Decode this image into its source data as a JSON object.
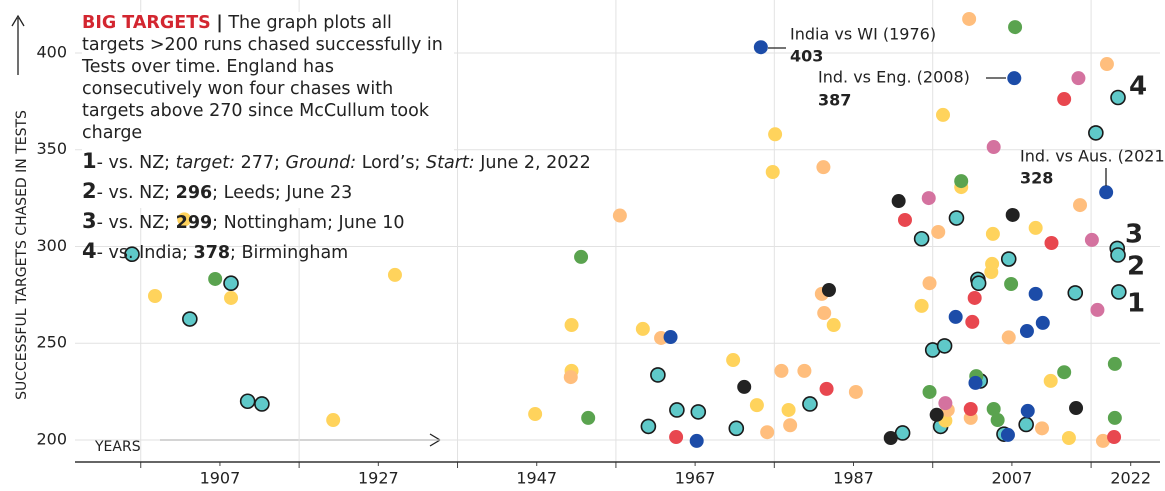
{
  "chart_data": {
    "type": "scatter",
    "headline": "BIG TARGETS",
    "separator": "|",
    "description": "The graph plots all targets >200 runs chased successfully in Tests over time. England has consecutively won four chases with targets above 270 since McCullum took charge",
    "notes": [
      [
        "1",
        "- vs. NZ; ",
        "target:",
        " 277; ",
        "Ground:",
        " Lord’s; ",
        "Start:",
        " June 2, 2022"
      ],
      [
        "2",
        "- vs. NZ; ",
        "296",
        "; Leeds; June 23"
      ],
      [
        "3",
        "- vs. NZ; ",
        "299",
        "; Nottingham; June 10"
      ],
      [
        "4",
        "- vs. India; ",
        "378",
        "; Birmingham"
      ]
    ],
    "ylabel": "SUCCESSFUL TARGETS CHASED IN TESTS",
    "xlabel": "YEARS",
    "xlim": [
      1888.7,
      2025.7
    ],
    "ylim": [
      188.6,
      427.4
    ],
    "xticks": [
      1907,
      1927,
      1947,
      1967,
      1987,
      2007,
      2022
    ],
    "xgrid": [
      1897,
      1917,
      1937,
      1957,
      1977,
      1997,
      2017
    ],
    "yticks": [
      200,
      250,
      300,
      350,
      400
    ],
    "grid": true,
    "series": [
      {
        "color": "#5fc9c9",
        "outline": true,
        "x": [
          1895.9,
          1903.2,
          1908.4,
          1910.5,
          1912.3,
          1962.3,
          1961.1,
          1964.7,
          1967.4,
          1972.2,
          1981.5,
          1993.2,
          1995.6,
          1997,
          1998.5,
          1998,
          2000,
          2002.7,
          2002.8,
          2003,
          2006.6,
          2006,
          2008.8,
          2015,
          2017.6,
          2020.4,
          2020.3,
          2020.4,
          2020.5
        ],
        "values": [
          296,
          262.5,
          281,
          220,
          218.6,
          233.6,
          207,
          215.5,
          214.5,
          206,
          218.6,
          203.6,
          304,
          246.5,
          248.6,
          207,
          314.7,
          283,
          281,
          230.5,
          293.5,
          203,
          208,
          276,
          358.7,
          377,
          299,
          295.6,
          276.5
        ]
      },
      {
        "color": "#ffd35c",
        "outline": false,
        "x": [
          1902.5,
          1898.8,
          1908.4,
          1929.1,
          1921.3,
          1946.8,
          1951.4,
          1951.4,
          1960.4,
          1971.8,
          1974.8,
          1977.1,
          1976.8,
          1978.8,
          1984.5,
          1998.3,
          1995.6,
          2000.6,
          2004.5,
          2004.4,
          2004.6,
          2010,
          2011.9,
          2014.2,
          1998.6
        ],
        "values": [
          314,
          274.4,
          273.4,
          285.3,
          210.3,
          213.4,
          259.4,
          235.7,
          257.4,
          241.3,
          218,
          358,
          338.5,
          215.5,
          259.4,
          368,
          269.3,
          330.7,
          291,
          286.8,
          306.5,
          309.6,
          230.5,
          201,
          210
        ]
      },
      {
        "color": "#ffbe7d",
        "outline": false,
        "x": [
          1957.5,
          1951.3,
          1962.7,
          1976.1,
          1977.9,
          1979,
          1980.8,
          1983.2,
          1983,
          1983.3,
          1987.3,
          1996.6,
          1997.7,
          1998.9,
          2001.6,
          2001.8,
          2006.6,
          2010.8,
          2015.6,
          2019,
          2018.5
        ],
        "values": [
          316,
          232.5,
          252.7,
          204,
          235.7,
          207.6,
          235.7,
          341,
          275.5,
          265.6,
          224.8,
          281,
          307.5,
          215.5,
          417.6,
          211.4,
          253,
          206,
          321.4,
          394.3,
          199.5
        ]
      },
      {
        "color": "#5aa34f",
        "outline": false,
        "x": [
          1906.4,
          1952.6,
          1953.5,
          2000.6,
          1996.6,
          2002.5,
          2004.7,
          2005.2,
          2006.9,
          2007.4,
          2013.6,
          2020,
          2020
        ],
        "values": [
          283.2,
          294.6,
          211.4,
          333.8,
          224.8,
          233,
          216,
          210.3,
          280.6,
          413.4,
          235,
          239.3,
          211.4
        ]
      },
      {
        "color": "#e8474f",
        "outline": false,
        "x": [
          1964.6,
          1983.6,
          1993.5,
          2002.3,
          2002,
          2001.8,
          2012,
          2013.6,
          2019.9
        ],
        "values": [
          201.5,
          226.4,
          313.7,
          273.4,
          261,
          216,
          301.8,
          376.2,
          201.5
        ]
      },
      {
        "color": "#1c4ca8",
        "outline": false,
        "x": [
          1963.9,
          1967.2,
          1975.3,
          2007.3,
          1999.9,
          2002.4,
          2006.5,
          2009,
          2008.9,
          2010,
          2010.9,
          2018.9
        ],
        "values": [
          253.2,
          199.5,
          403,
          387,
          263.6,
          229.5,
          202.6,
          215,
          256.3,
          275.5,
          260.5,
          328
        ]
      },
      {
        "color": "#222222",
        "outline": false,
        "x": [
          1973.2,
          1983.9,
          1991.7,
          1992.7,
          1997.5,
          2007.1,
          2015.1
        ],
        "values": [
          227.4,
          277.5,
          201,
          323.5,
          213,
          316.3,
          216.5
        ]
      },
      {
        "color": "#d4729f",
        "outline": false,
        "x": [
          1996.5,
          1998.6,
          2004.7,
          2015.4,
          2017.1,
          2017.8
        ],
        "values": [
          325,
          219,
          351.4,
          387,
          303.4,
          267.2
        ]
      }
    ],
    "callouts": [
      {
        "text": "India vs WI (1976)",
        "value": 403
      },
      {
        "text": "Ind. vs Eng. (2008)",
        "value": 387
      },
      {
        "text": "Ind. vs Aus. (2021)",
        "value": 328
      }
    ],
    "point_labels": [
      "1",
      "2",
      "3",
      "4"
    ]
  }
}
